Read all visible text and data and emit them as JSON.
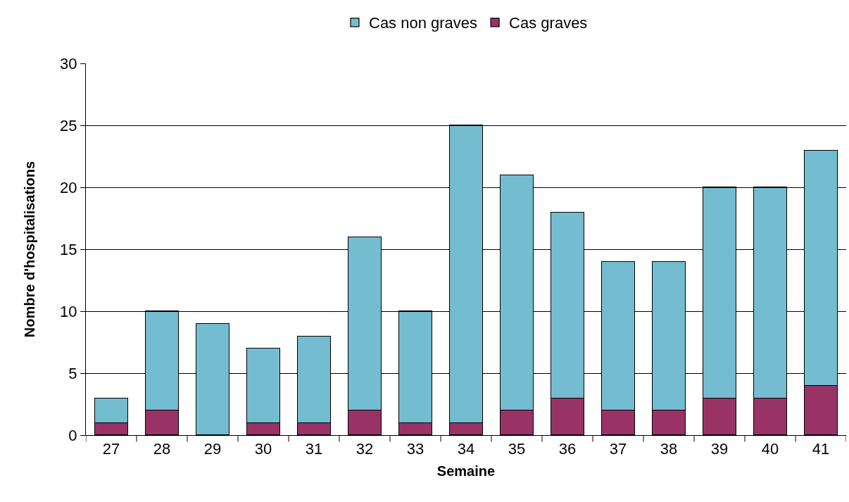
{
  "chart_data": {
    "type": "bar",
    "stacked": true,
    "xlabel": "Semaine",
    "ylabel": "Nombre d'hospitalisations",
    "categories": [
      "27",
      "28",
      "29",
      "30",
      "31",
      "32",
      "33",
      "34",
      "35",
      "36",
      "37",
      "38",
      "39",
      "40",
      "41"
    ],
    "series": [
      {
        "name": "Cas graves",
        "color": "#993366",
        "values": [
          1,
          2,
          0,
          1,
          1,
          2,
          1,
          1,
          2,
          3,
          2,
          2,
          3,
          3,
          4
        ]
      },
      {
        "name": "Cas non graves",
        "color": "#74bcd0",
        "values": [
          2,
          8,
          9,
          6,
          7,
          14,
          9,
          24,
          19,
          15,
          12,
          12,
          17,
          17,
          19
        ]
      }
    ],
    "ylim": [
      0,
      30
    ],
    "yticks": [
      0,
      5,
      10,
      15,
      20,
      25,
      30
    ],
    "grid": "y",
    "legend": "top"
  }
}
